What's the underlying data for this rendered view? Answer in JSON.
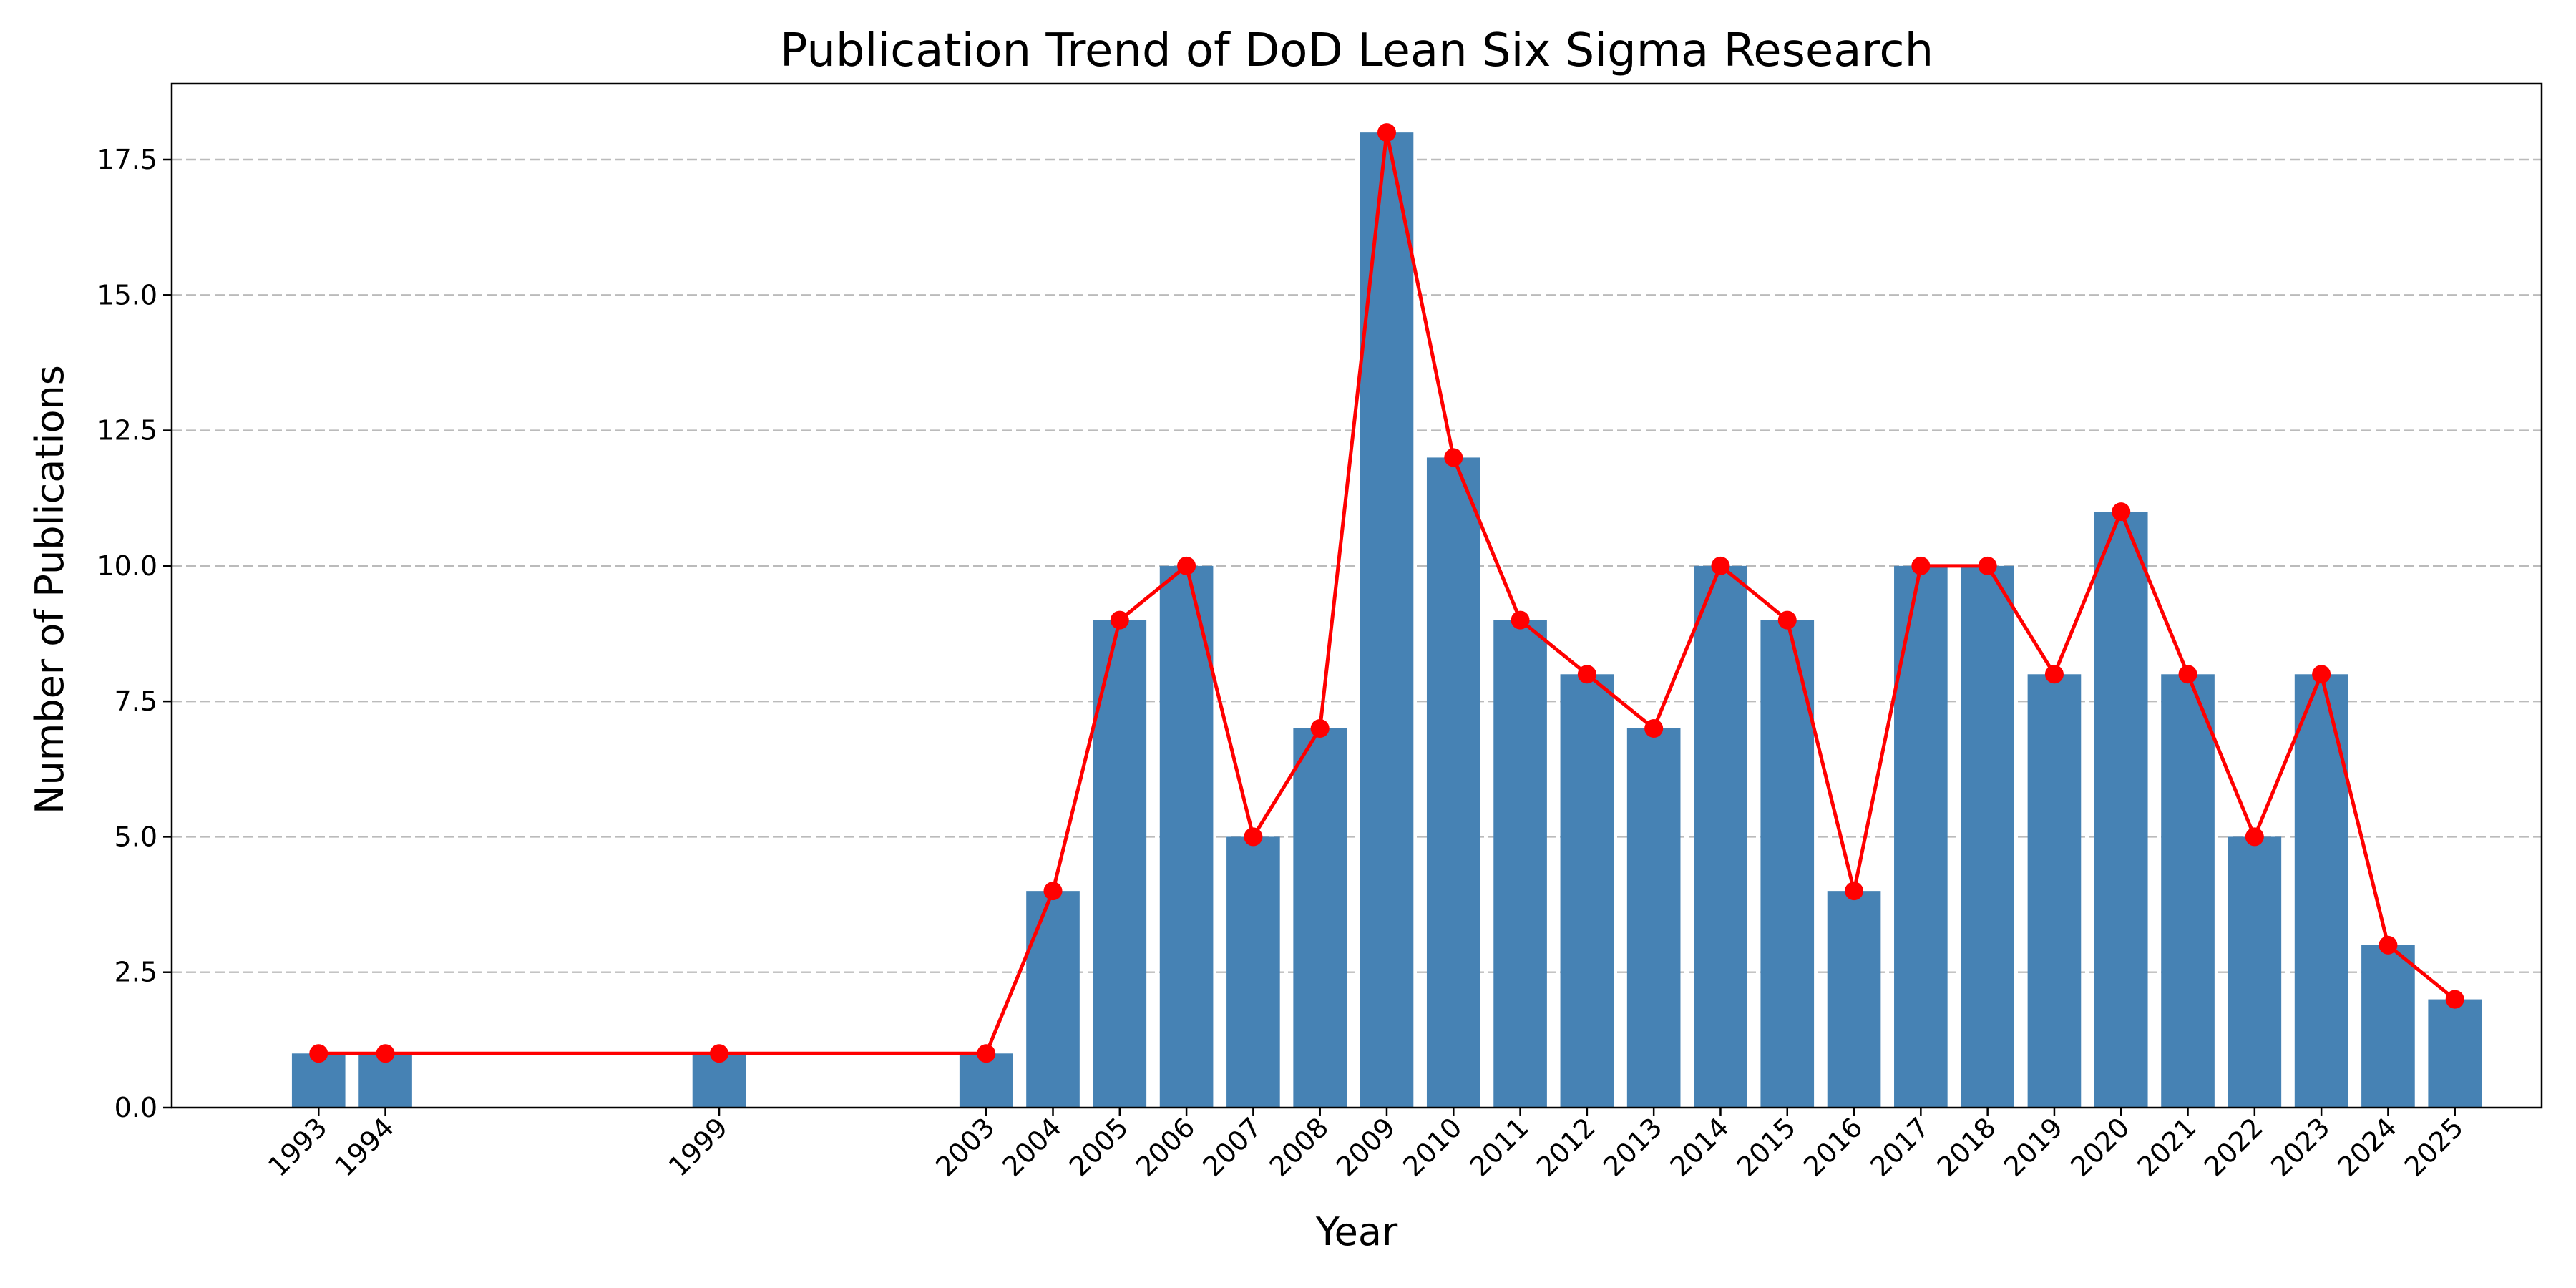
{
  "chart_data": {
    "type": "bar",
    "title": "Publication Trend of DoD Lean Six Sigma Research",
    "xlabel": "Year",
    "ylabel": "Number of Publications",
    "x": [
      1993,
      1994,
      1999,
      2003,
      2004,
      2005,
      2006,
      2007,
      2008,
      2009,
      2010,
      2011,
      2012,
      2013,
      2014,
      2015,
      2016,
      2017,
      2018,
      2019,
      2020,
      2021,
      2022,
      2023,
      2024,
      2025
    ],
    "values": [
      1,
      1,
      1,
      1,
      4,
      9,
      10,
      5,
      7,
      18,
      12,
      9,
      8,
      7,
      10,
      9,
      4,
      10,
      10,
      8,
      11,
      8,
      5,
      8,
      3,
      2
    ],
    "series": [
      {
        "type": "bar",
        "color": "#4682b4"
      },
      {
        "type": "line",
        "marker": "circle",
        "color": "#ff0000"
      }
    ],
    "xlim": [
      1990.8,
      2026.3
    ],
    "ylim": [
      0,
      18.9
    ],
    "yticks": [
      "0.0",
      "2.5",
      "5.0",
      "7.5",
      "10.0",
      "12.5",
      "15.0",
      "17.5"
    ],
    "xtick_rotation": "45 degrees",
    "grid": "y-axis dashed",
    "legend": "none"
  }
}
